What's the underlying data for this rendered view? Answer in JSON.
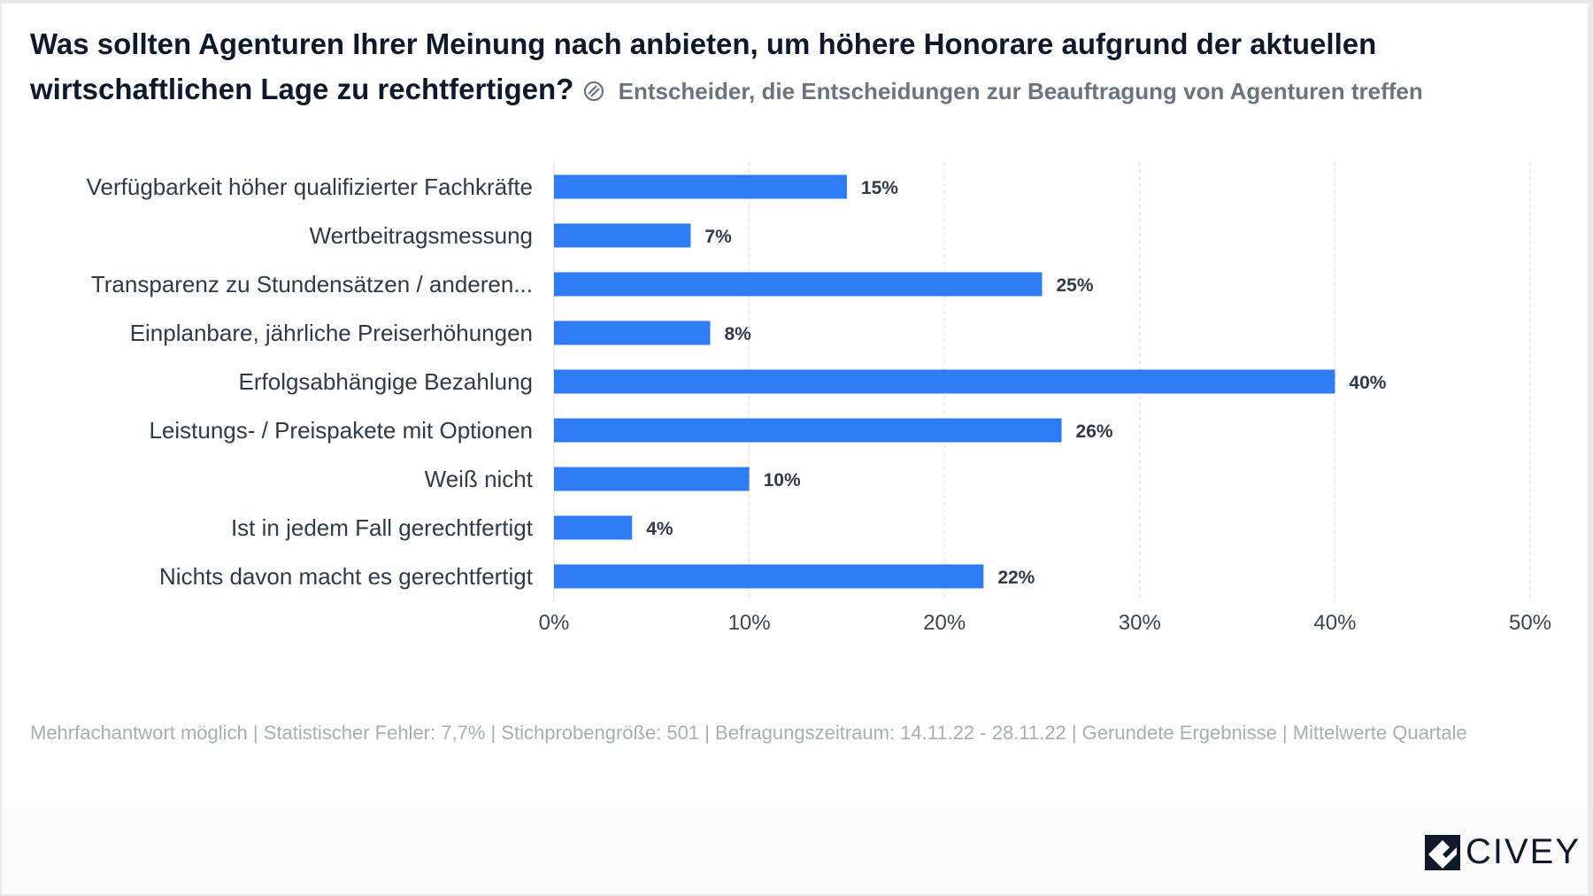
{
  "header": {
    "title": "Was sollten Agenturen Ihrer Meinung nach anbieten, um höhere Honorare aufgrund der aktuellen wirtschaftlichen Lage zu rechtfertigen?",
    "subtitle": "Entscheider, die Entscheidungen zur Beauftragung von Agenturen treffen",
    "subtitle_icon": "target-group-icon"
  },
  "chart_data": {
    "type": "bar",
    "orientation": "horizontal",
    "categories": [
      "Verfügbarkeit höher qualifizierter Fachkräfte",
      "Wertbeitragsmessung",
      "Transparenz zu Stundensätzen / anderen...",
      "Einplanbare, jährliche Preiserhöhungen",
      "Erfolgsabhängige Bezahlung",
      "Leistungs- / Preispakete mit Optionen",
      "Weiß nicht",
      "Ist in jedem Fall gerechtfertigt",
      "Nichts davon macht es gerechtfertigt"
    ],
    "values": [
      15,
      7,
      25,
      8,
      40,
      26,
      10,
      4,
      22
    ],
    "value_labels": [
      "15%",
      "7%",
      "25%",
      "8%",
      "40%",
      "26%",
      "10%",
      "4%",
      "22%"
    ],
    "xlim": [
      0,
      50
    ],
    "ticks": [
      "0%",
      "10%",
      "20%",
      "30%",
      "40%",
      "50%"
    ],
    "grid": true,
    "bar_color": "#2e7bf6"
  },
  "footer": {
    "note": "Mehrfachantwort möglich | Statistischer Fehler: 7,7% | Stichprobengröße: 501 | Befragungszeitraum: 14.11.22 - 28.11.22 | Gerundete Ergebnisse | Mittelwerte Quartale",
    "brand": "CIVEY"
  }
}
